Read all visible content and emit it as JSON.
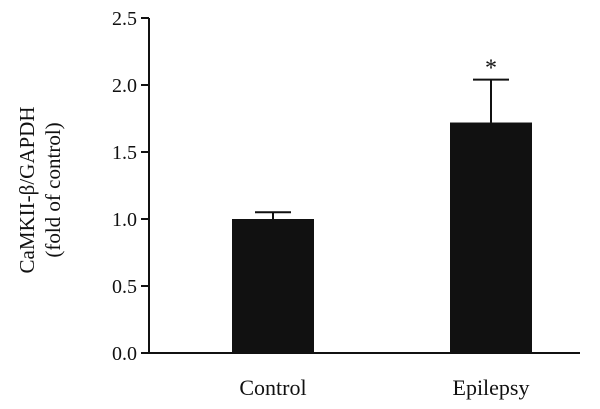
{
  "chart_data": {
    "type": "bar",
    "categories": [
      "Control",
      "Epilepsy"
    ],
    "values": [
      1.0,
      1.72
    ],
    "error_upper": [
      0.05,
      0.32
    ],
    "significance": [
      "",
      "*"
    ],
    "ylabel_line1": "CaMKII-β/GAPDH",
    "ylabel_line2": "(fold of control)",
    "ylim": [
      0,
      2.5
    ],
    "yticks": [
      "0.0",
      "0.5",
      "1.0",
      "1.5",
      "2.0",
      "2.5"
    ],
    "grid": false,
    "bar_color": "#111111"
  }
}
